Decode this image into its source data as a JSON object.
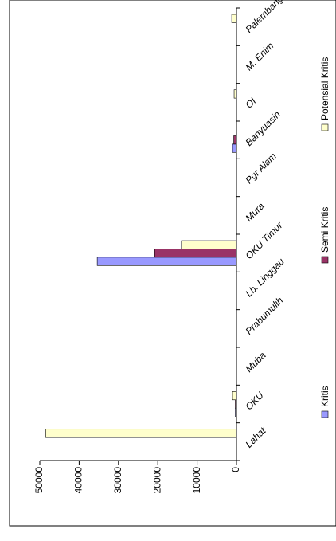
{
  "chart_data": {
    "type": "bar",
    "categories": [
      "Lahat",
      "OKU",
      "Muba",
      "Prabumulih",
      "Lb. Linggau",
      "OKU Timur",
      "Mura",
      "Pgr Alam",
      "Banyuasin",
      "OI",
      "M. Enim",
      "Palembang"
    ],
    "series": [
      {
        "name": "Kritis",
        "color": "#9999ff",
        "values": [
          0,
          300,
          0,
          0,
          0,
          35400,
          0,
          0,
          1000,
          0,
          0,
          0
        ]
      },
      {
        "name": "Semi Kritis",
        "color": "#993366",
        "values": [
          0,
          300,
          0,
          0,
          0,
          20800,
          0,
          0,
          700,
          0,
          0,
          0
        ]
      },
      {
        "name": "Potensial Kritis",
        "color": "#ffffcc",
        "values": [
          48500,
          1000,
          0,
          0,
          0,
          14000,
          0,
          0,
          0,
          600,
          0,
          1200
        ]
      }
    ],
    "ylim": [
      0,
      50000
    ],
    "yticks": [
      0,
      10000,
      20000,
      30000,
      40000,
      50000
    ],
    "legend": "bottom"
  }
}
